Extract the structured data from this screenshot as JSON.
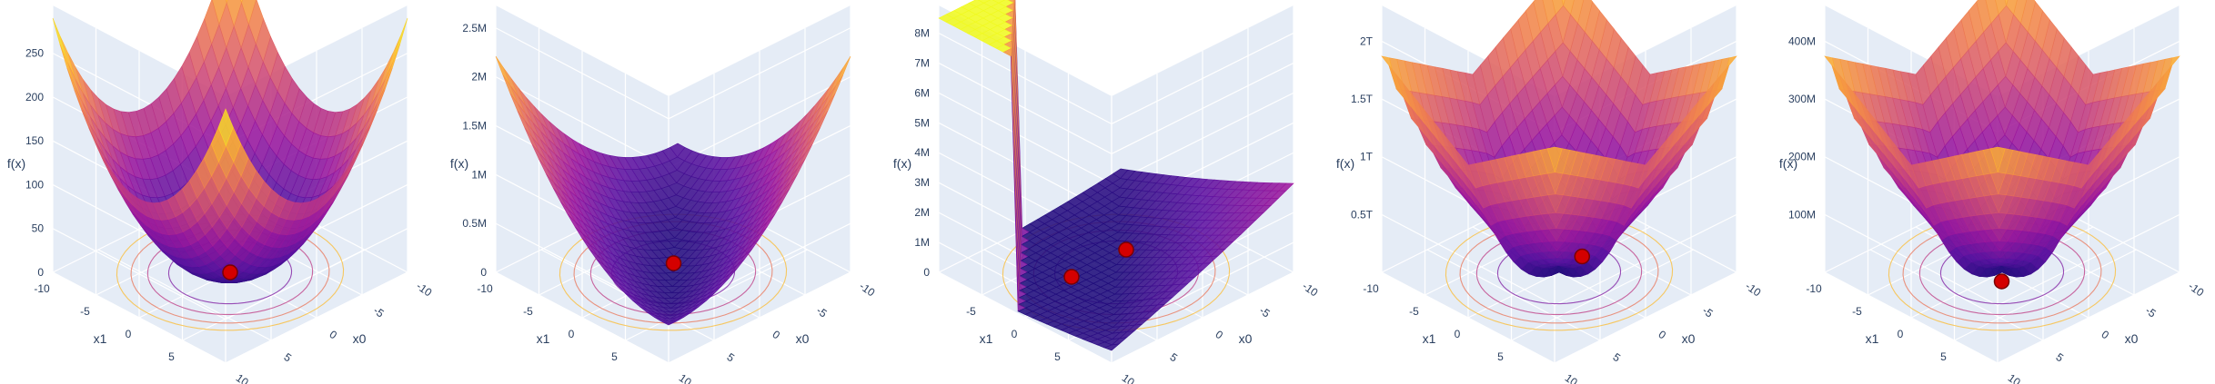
{
  "chart_data": [
    {
      "type": "surface",
      "axis_labels": {
        "x": "x0",
        "y": "x1",
        "z": "f(x)"
      },
      "x_ticks": [
        "10",
        "5",
        "0",
        "-5",
        "-10"
      ],
      "y_ticks": [
        "-10",
        "-5",
        "0",
        "5"
      ],
      "z_ticks": [
        "0",
        "50",
        "100",
        "150",
        "200",
        "250"
      ],
      "z_range": [
        0,
        290
      ],
      "surface_shape": "bowl",
      "minima": [
        {
          "x0": 0,
          "x1": 0,
          "fx": 0
        }
      ],
      "colorscale": [
        "#1f0c7b",
        "#5b12a0",
        "#9c179e",
        "#cc4778",
        "#ed7953",
        "#fdb42f",
        "#f0f921"
      ]
    },
    {
      "type": "surface",
      "axis_labels": {
        "x": "x0",
        "y": "x1",
        "z": "f(x)"
      },
      "x_ticks": [
        "10",
        "5",
        "0",
        "-5",
        "-10"
      ],
      "y_ticks": [
        "-10",
        "-5",
        "0",
        "5"
      ],
      "z_ticks": [
        "0",
        "0.5M",
        "1M",
        "1.5M",
        "2M",
        "2.5M"
      ],
      "z_range": [
        0,
        2600000
      ],
      "surface_shape": "valley",
      "minima": [
        {
          "x0": 1,
          "x1": 1,
          "fx": 0
        }
      ],
      "colorscale": [
        "#1f0c7b",
        "#5b12a0",
        "#9c179e",
        "#cc4778",
        "#ed7953",
        "#fdb42f",
        "#f0f921"
      ]
    },
    {
      "type": "surface",
      "axis_labels": {
        "x": "x0",
        "y": "x1",
        "z": "f(x)"
      },
      "x_ticks": [
        "10",
        "5",
        "0",
        "-5",
        "-10"
      ],
      "y_ticks": [
        "-5",
        "0",
        "5"
      ],
      "z_ticks": [
        "0",
        "1M",
        "2M",
        "3M",
        "4M",
        "5M",
        "6M",
        "7M",
        "8M"
      ],
      "z_range": [
        0,
        8500000
      ],
      "surface_shape": "cliff",
      "minima": [
        {
          "x0": 3,
          "x1": 2,
          "fx": 0
        },
        {
          "x0": -3,
          "x1": 2,
          "fx": 0
        }
      ],
      "colorscale": [
        "#1f0c7b",
        "#5b12a0",
        "#9c179e",
        "#cc4778",
        "#ed7953",
        "#fdb42f",
        "#f0f921"
      ]
    },
    {
      "type": "surface",
      "axis_labels": {
        "x": "x0",
        "y": "x1",
        "z": "f(x)"
      },
      "x_ticks": [
        "10",
        "5",
        "0",
        "-5",
        "-10"
      ],
      "y_ticks": [
        "-10",
        "-5",
        "0",
        "5"
      ],
      "z_ticks": [
        "0.5T",
        "1T",
        "1.5T",
        "2T"
      ],
      "z_range": [
        0,
        2200000000000
      ],
      "surface_shape": "cross",
      "minima": [
        {
          "x0": 3,
          "x1": 0.5,
          "fx": 0
        }
      ],
      "colorscale": [
        "#1f0c7b",
        "#5b12a0",
        "#9c179e",
        "#cc4778",
        "#ed7953",
        "#fdb42f",
        "#f0f921"
      ]
    },
    {
      "type": "surface",
      "axis_labels": {
        "x": "x0",
        "y": "x1",
        "z": "f(x)"
      },
      "x_ticks": [
        "10",
        "5",
        "0",
        "-5",
        "-10"
      ],
      "y_ticks": [
        "-10",
        "-5",
        "0",
        "5"
      ],
      "z_ticks": [
        "100M",
        "200M",
        "300M",
        "400M"
      ],
      "z_range": [
        0,
        440000000
      ],
      "surface_shape": "cross",
      "minima": [
        {
          "x0": -1,
          "x1": -1,
          "fx": 0
        }
      ],
      "colorscale": [
        "#1f0c7b",
        "#5b12a0",
        "#9c179e",
        "#cc4778",
        "#ed7953",
        "#fdb42f",
        "#f0f921"
      ]
    }
  ]
}
